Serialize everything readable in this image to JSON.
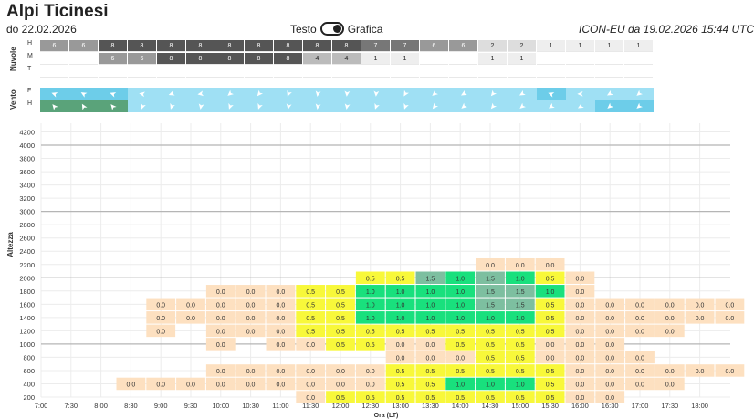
{
  "header": {
    "title": "Alpi Ticinesi",
    "subtitle": "do 22.02.2026",
    "toggle_left": "Testo",
    "toggle_right": "Grafica",
    "model": "ICON-EU da 19.02.2026 15:44 UTC"
  },
  "clouds": {
    "label": "Nuvole",
    "rows": [
      "H",
      "M",
      "T"
    ],
    "H": [
      "6",
      "6",
      "8",
      "8",
      "8",
      "8",
      "8",
      "8",
      "8",
      "8",
      "8",
      "7",
      "7",
      "6",
      "6",
      "2",
      "2",
      "1",
      "1",
      "1",
      "1"
    ],
    "M": [
      "",
      "",
      "6",
      "6",
      "8",
      "8",
      "8",
      "8",
      "8",
      "4",
      "4",
      "1",
      "1",
      "",
      "",
      "1",
      "1",
      "",
      "",
      "",
      ""
    ],
    "T": [
      "",
      "",
      "",
      "",
      "",
      "",
      "",
      "",
      "",
      "",
      "",
      "",
      "",
      "",
      "",
      "",
      "",
      "",
      "",
      "",
      ""
    ]
  },
  "wind": {
    "label": "Vento",
    "rows": [
      "F",
      "H"
    ],
    "F_shade": [
      1,
      1,
      1,
      0,
      0,
      0,
      0,
      0,
      0,
      0,
      0,
      0,
      0,
      0,
      0,
      0,
      0,
      1,
      0,
      0,
      0
    ],
    "H_shade": [
      2,
      2,
      2,
      0,
      0,
      0,
      0,
      0,
      0,
      0,
      0,
      0,
      0,
      0,
      0,
      0,
      0,
      0,
      0,
      1,
      1
    ],
    "F_dir": [
      200,
      210,
      200,
      190,
      160,
      170,
      140,
      130,
      110,
      100,
      95,
      95,
      120,
      140,
      150,
      130,
      150,
      200,
      180,
      150,
      140
    ],
    "H_dir": [
      230,
      240,
      230,
      110,
      110,
      100,
      110,
      110,
      100,
      100,
      100,
      110,
      110,
      130,
      140,
      130,
      140,
      150,
      150,
      140,
      140
    ]
  },
  "colors": {
    "cloud_8": "#555555",
    "cloud_7": "#777777",
    "cloud_6": "#999999",
    "cloud_4": "#bbbbbb",
    "cloud_2": "#dddddd",
    "cloud_1": "#eeeeee",
    "wind_0": "#9fe0f4",
    "wind_1": "#6dcde9",
    "wind_2": "#5aa37a",
    "lift_0": "#fde0c0",
    "lift_0_5": "#f8f83a",
    "lift_1": "#19e07d",
    "lift_1_5": "#7dbfa0"
  },
  "chart_data": {
    "type": "heatmap",
    "title": "",
    "xlabel": "Ora (LT)",
    "ylabel": "Altezza",
    "x": [
      "7:00",
      "7:30",
      "8:00",
      "8:30",
      "9:00",
      "9:30",
      "10:00",
      "10:30",
      "11:00",
      "11:30",
      "12:00",
      "12:30",
      "13:00",
      "13:30",
      "14:00",
      "14:30",
      "15:00",
      "15:30",
      "16:00",
      "16:30",
      "17:00",
      "17:30",
      "18:00"
    ],
    "yticks": [
      200,
      400,
      600,
      800,
      1000,
      1200,
      1400,
      1600,
      1800,
      2000,
      2200,
      2400,
      2600,
      2800,
      3000,
      3200,
      3400,
      3600,
      3800,
      4000,
      4200
    ],
    "ylim": [
      200,
      4400
    ],
    "major_grid": [
      1000,
      2000,
      3000,
      4000
    ],
    "cells": [
      [
        3,
        400,
        "0.0"
      ],
      [
        4,
        400,
        "0.0"
      ],
      [
        5,
        400,
        "0.0"
      ],
      [
        6,
        400,
        "0.0"
      ],
      [
        7,
        400,
        "0.0"
      ],
      [
        8,
        400,
        "0.0"
      ],
      [
        9,
        400,
        "0.0"
      ],
      [
        10,
        400,
        "0.0"
      ],
      [
        11,
        400,
        "0.0"
      ],
      [
        12,
        400,
        "0.5"
      ],
      [
        13,
        400,
        "0.5"
      ],
      [
        14,
        400,
        "1.0"
      ],
      [
        15,
        400,
        "1.0"
      ],
      [
        16,
        400,
        "1.0"
      ],
      [
        17,
        400,
        "0.5"
      ],
      [
        18,
        400,
        "0.0"
      ],
      [
        19,
        400,
        "0.0"
      ],
      [
        20,
        400,
        "0.0"
      ],
      [
        21,
        400,
        "0.0"
      ],
      [
        9,
        200,
        "0.0"
      ],
      [
        10,
        200,
        "0.5"
      ],
      [
        11,
        200,
        "0.5"
      ],
      [
        12,
        200,
        "0.5"
      ],
      [
        13,
        200,
        "0.5"
      ],
      [
        14,
        200,
        "0.5"
      ],
      [
        15,
        200,
        "0.5"
      ],
      [
        16,
        200,
        "0.5"
      ],
      [
        17,
        200,
        "0.5"
      ],
      [
        18,
        200,
        "0.0"
      ],
      [
        19,
        200,
        "0.0"
      ],
      [
        6,
        600,
        "0.0"
      ],
      [
        7,
        600,
        "0.0"
      ],
      [
        8,
        600,
        "0.0"
      ],
      [
        9,
        600,
        "0.0"
      ],
      [
        10,
        600,
        "0.0"
      ],
      [
        11,
        600,
        "0.0"
      ],
      [
        12,
        600,
        "0.5"
      ],
      [
        13,
        600,
        "0.5"
      ],
      [
        14,
        600,
        "0.5"
      ],
      [
        15,
        600,
        "0.5"
      ],
      [
        16,
        600,
        "0.5"
      ],
      [
        17,
        600,
        "0.5"
      ],
      [
        18,
        600,
        "0.0"
      ],
      [
        19,
        600,
        "0.0"
      ],
      [
        20,
        600,
        "0.0"
      ],
      [
        21,
        600,
        "0.0"
      ],
      [
        22,
        600,
        "0.0"
      ],
      [
        23,
        600,
        "0.0"
      ],
      [
        12,
        800,
        "0.0"
      ],
      [
        13,
        800,
        "0.0"
      ],
      [
        14,
        800,
        "0.0"
      ],
      [
        15,
        800,
        "0.5"
      ],
      [
        16,
        800,
        "0.5"
      ],
      [
        17,
        800,
        "0.0"
      ],
      [
        18,
        800,
        "0.0"
      ],
      [
        19,
        800,
        "0.0"
      ],
      [
        20,
        800,
        "0.0"
      ],
      [
        6,
        1000,
        "0.0"
      ],
      [
        8,
        1000,
        "0.0"
      ],
      [
        9,
        1000,
        "0.0"
      ],
      [
        10,
        1000,
        "0.5"
      ],
      [
        11,
        1000,
        "0.5"
      ],
      [
        12,
        1000,
        "0.0"
      ],
      [
        13,
        1000,
        "0.0"
      ],
      [
        14,
        1000,
        "0.5"
      ],
      [
        15,
        1000,
        "0.5"
      ],
      [
        16,
        1000,
        "0.5"
      ],
      [
        17,
        1000,
        "0.0"
      ],
      [
        18,
        1000,
        "0.0"
      ],
      [
        19,
        1000,
        "0.0"
      ],
      [
        4,
        1200,
        "0.0"
      ],
      [
        6,
        1200,
        "0.0"
      ],
      [
        7,
        1200,
        "0.0"
      ],
      [
        8,
        1200,
        "0.0"
      ],
      [
        9,
        1200,
        "0.5"
      ],
      [
        10,
        1200,
        "0.5"
      ],
      [
        11,
        1200,
        "0.5"
      ],
      [
        12,
        1200,
        "0.5"
      ],
      [
        13,
        1200,
        "0.5"
      ],
      [
        14,
        1200,
        "0.5"
      ],
      [
        15,
        1200,
        "0.5"
      ],
      [
        16,
        1200,
        "0.5"
      ],
      [
        17,
        1200,
        "0.5"
      ],
      [
        18,
        1200,
        "0.0"
      ],
      [
        19,
        1200,
        "0.0"
      ],
      [
        20,
        1200,
        "0.0"
      ],
      [
        21,
        1200,
        "0.0"
      ],
      [
        4,
        1400,
        "0.0"
      ],
      [
        5,
        1400,
        "0.0"
      ],
      [
        6,
        1400,
        "0.0"
      ],
      [
        7,
        1400,
        "0.0"
      ],
      [
        8,
        1400,
        "0.0"
      ],
      [
        9,
        1400,
        "0.5"
      ],
      [
        10,
        1400,
        "0.5"
      ],
      [
        11,
        1400,
        "1.0"
      ],
      [
        12,
        1400,
        "1.0"
      ],
      [
        13,
        1400,
        "1.0"
      ],
      [
        14,
        1400,
        "1.0"
      ],
      [
        15,
        1400,
        "1.0"
      ],
      [
        16,
        1400,
        "1.0"
      ],
      [
        17,
        1400,
        "0.5"
      ],
      [
        18,
        1400,
        "0.0"
      ],
      [
        19,
        1400,
        "0.0"
      ],
      [
        20,
        1400,
        "0.0"
      ],
      [
        21,
        1400,
        "0.0"
      ],
      [
        22,
        1400,
        "0.0"
      ],
      [
        23,
        1400,
        "0.0"
      ],
      [
        4,
        1600,
        "0.0"
      ],
      [
        5,
        1600,
        "0.0"
      ],
      [
        6,
        1600,
        "0.0"
      ],
      [
        7,
        1600,
        "0.0"
      ],
      [
        8,
        1600,
        "0.0"
      ],
      [
        9,
        1600,
        "0.5"
      ],
      [
        10,
        1600,
        "0.5"
      ],
      [
        11,
        1600,
        "1.0"
      ],
      [
        12,
        1600,
        "1.0"
      ],
      [
        13,
        1600,
        "1.0"
      ],
      [
        14,
        1600,
        "1.0"
      ],
      [
        15,
        1600,
        "1.5"
      ],
      [
        16,
        1600,
        "1.5"
      ],
      [
        17,
        1600,
        "0.5"
      ],
      [
        18,
        1600,
        "0.0"
      ],
      [
        19,
        1600,
        "0.0"
      ],
      [
        20,
        1600,
        "0.0"
      ],
      [
        21,
        1600,
        "0.0"
      ],
      [
        22,
        1600,
        "0.0"
      ],
      [
        23,
        1600,
        "0.0"
      ],
      [
        6,
        1800,
        "0.0"
      ],
      [
        7,
        1800,
        "0.0"
      ],
      [
        8,
        1800,
        "0.0"
      ],
      [
        9,
        1800,
        "0.5"
      ],
      [
        10,
        1800,
        "0.5"
      ],
      [
        11,
        1800,
        "1.0"
      ],
      [
        12,
        1800,
        "1.0"
      ],
      [
        13,
        1800,
        "1.0"
      ],
      [
        14,
        1800,
        "1.0"
      ],
      [
        15,
        1800,
        "1.5"
      ],
      [
        16,
        1800,
        "1.5"
      ],
      [
        17,
        1800,
        "1.0"
      ],
      [
        18,
        1800,
        "0.0"
      ],
      [
        11,
        2000,
        "0.5"
      ],
      [
        12,
        2000,
        "0.5"
      ],
      [
        13,
        2000,
        "1.5"
      ],
      [
        14,
        2000,
        "1.0"
      ],
      [
        15,
        2000,
        "1.5"
      ],
      [
        16,
        2000,
        "1.0"
      ],
      [
        17,
        2000,
        "0.5"
      ],
      [
        18,
        2000,
        "0.0"
      ],
      [
        15,
        2200,
        "0.0"
      ],
      [
        16,
        2200,
        "0.0"
      ],
      [
        17,
        2200,
        "0.0"
      ]
    ]
  }
}
